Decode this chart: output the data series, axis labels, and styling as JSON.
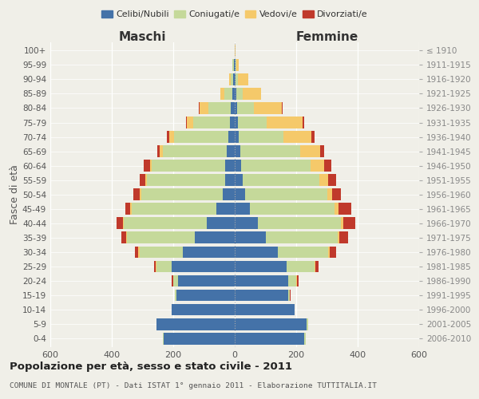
{
  "age_groups": [
    "0-4",
    "5-9",
    "10-14",
    "15-19",
    "20-24",
    "25-29",
    "30-34",
    "35-39",
    "40-44",
    "45-49",
    "50-54",
    "55-59",
    "60-64",
    "65-69",
    "70-74",
    "75-79",
    "80-84",
    "85-89",
    "90-94",
    "95-99",
    "100+"
  ],
  "birth_years": [
    "2006-2010",
    "2001-2005",
    "1996-2000",
    "1991-1995",
    "1986-1990",
    "1981-1985",
    "1976-1980",
    "1971-1975",
    "1966-1970",
    "1961-1965",
    "1956-1960",
    "1951-1955",
    "1946-1950",
    "1941-1945",
    "1936-1940",
    "1931-1935",
    "1926-1930",
    "1921-1925",
    "1916-1920",
    "1911-1915",
    "≤ 1910"
  ],
  "males": {
    "celibi": [
      230,
      255,
      205,
      190,
      185,
      205,
      170,
      130,
      90,
      60,
      40,
      30,
      30,
      25,
      22,
      15,
      12,
      7,
      4,
      3,
      1
    ],
    "coniugati": [
      5,
      0,
      0,
      5,
      15,
      50,
      140,
      220,
      270,
      275,
      265,
      255,
      240,
      210,
      175,
      120,
      75,
      28,
      10,
      4,
      0
    ],
    "vedovi": [
      0,
      0,
      0,
      0,
      1,
      2,
      3,
      4,
      4,
      4,
      4,
      6,
      5,
      10,
      15,
      20,
      28,
      12,
      5,
      2,
      0
    ],
    "divorziati": [
      0,
      0,
      0,
      1,
      3,
      6,
      12,
      14,
      20,
      18,
      22,
      18,
      20,
      8,
      8,
      3,
      2,
      1,
      0,
      0,
      0
    ]
  },
  "females": {
    "nubili": [
      225,
      235,
      195,
      175,
      175,
      170,
      140,
      100,
      75,
      50,
      35,
      25,
      22,
      18,
      14,
      10,
      8,
      5,
      3,
      2,
      0
    ],
    "coniugate": [
      5,
      5,
      0,
      5,
      25,
      90,
      165,
      235,
      270,
      275,
      265,
      250,
      225,
      195,
      145,
      95,
      55,
      22,
      8,
      2,
      0
    ],
    "vedove": [
      0,
      0,
      0,
      0,
      2,
      3,
      5,
      5,
      8,
      12,
      18,
      30,
      45,
      65,
      90,
      115,
      90,
      58,
      32,
      8,
      2
    ],
    "divorziate": [
      0,
      0,
      0,
      2,
      5,
      10,
      20,
      28,
      38,
      42,
      28,
      25,
      22,
      12,
      10,
      5,
      3,
      2,
      0,
      0,
      0
    ]
  },
  "colors": {
    "celibi": "#4472a8",
    "coniugati": "#c5d99a",
    "vedovi": "#f5c96a",
    "divorziati": "#c0392b"
  },
  "title": "Popolazione per età, sesso e stato civile - 2011",
  "subtitle": "COMUNE DI MONTALE (PT) - Dati ISTAT 1° gennaio 2011 - Elaborazione TUTTITALIA.IT",
  "xlabel_left": "Maschi",
  "xlabel_right": "Femmine",
  "ylabel_left": "Fasce di età",
  "xlim": 600,
  "background_color": "#f0efe8"
}
